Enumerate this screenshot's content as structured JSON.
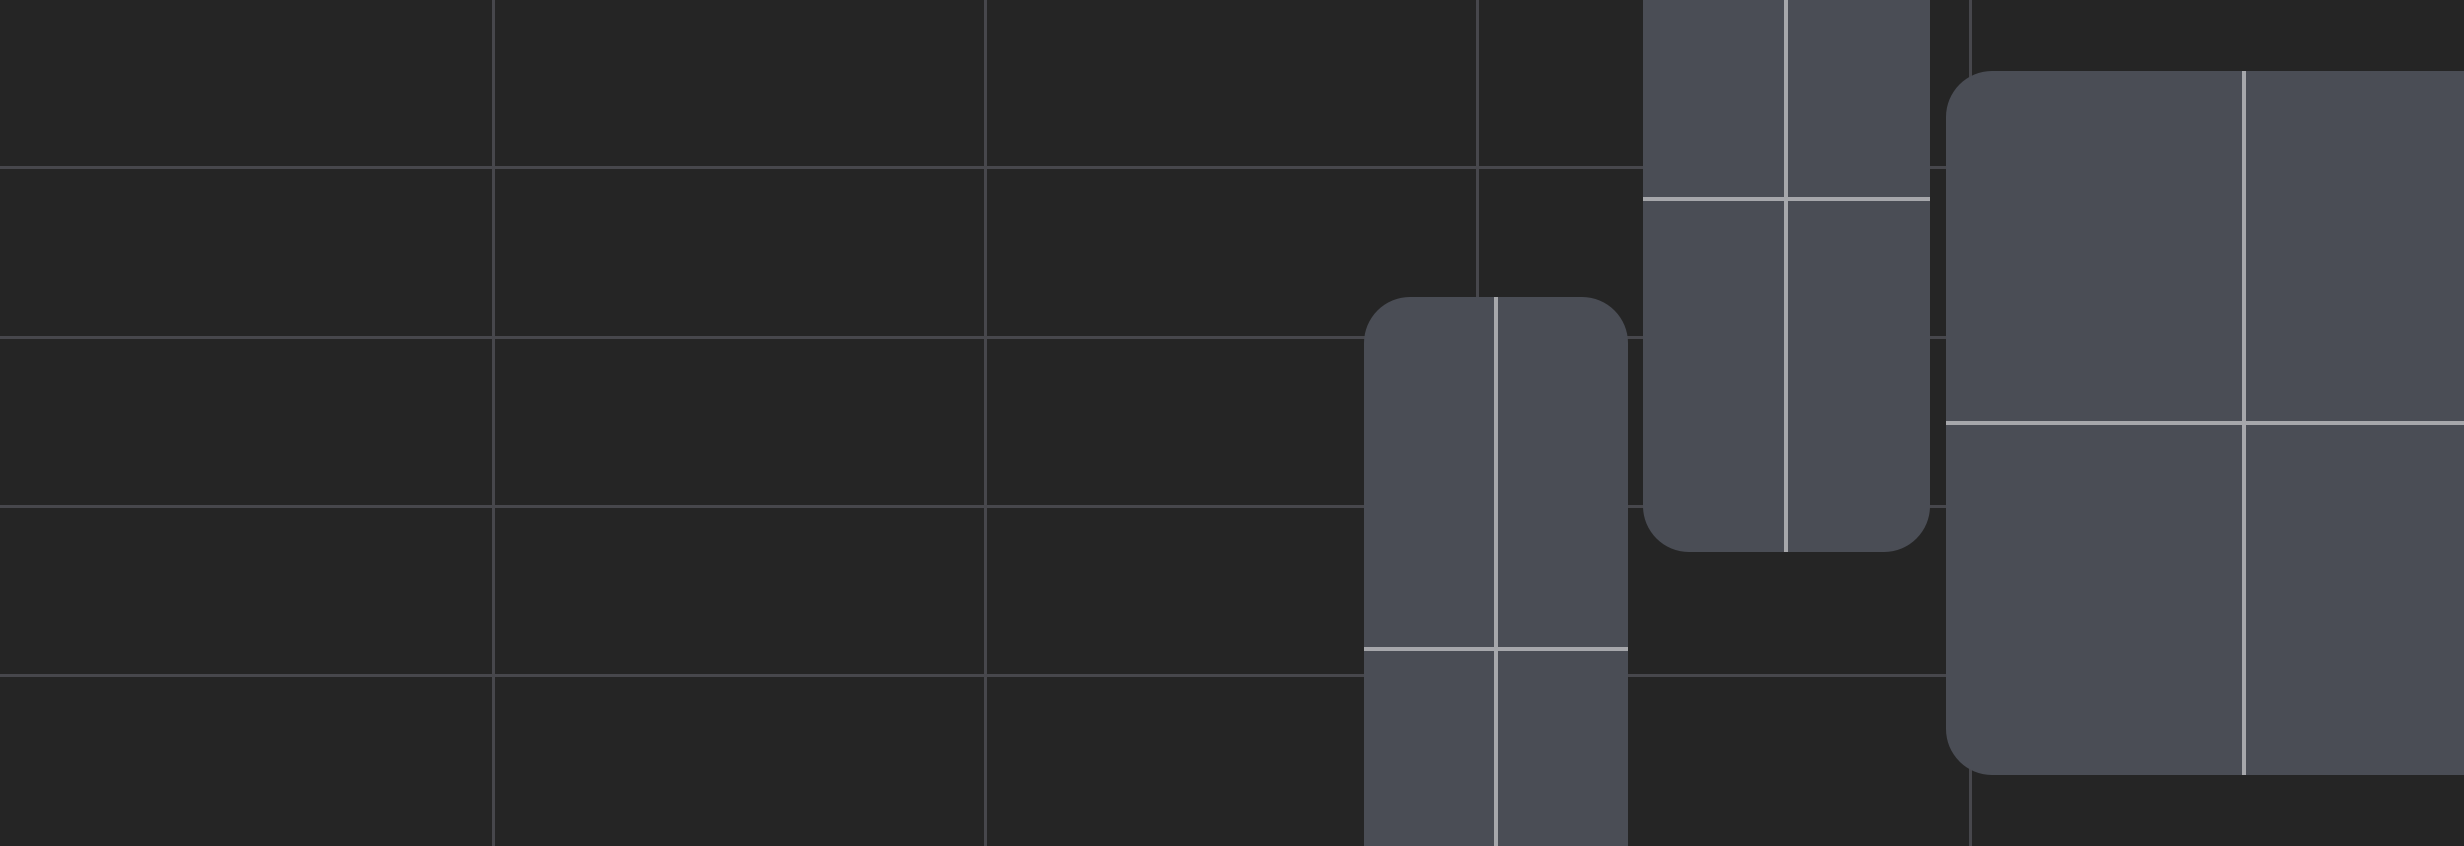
{
  "colors": {
    "background": "#252525",
    "grid_line": "#47474c",
    "card_fill": "#4a4d55",
    "card_divider": "#a6a7ab"
  },
  "grid": {
    "columns": 5,
    "rows": 5
  },
  "cards": [
    {
      "kind": "phone",
      "panes": 4
    },
    {
      "kind": "foldable",
      "panes": 4
    },
    {
      "kind": "tablet",
      "panes": 4
    }
  ]
}
